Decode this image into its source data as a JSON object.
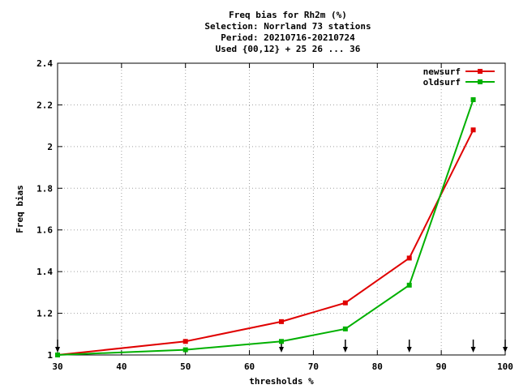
{
  "chart_data": {
    "type": "line",
    "title_lines": [
      "Freq bias  for Rh2m (%)",
      "Selection: Norrland     73 stations",
      "Period: 20210716-20210724",
      "Used {00,12} + 25 26 ... 36"
    ],
    "xlabel": "thresholds %",
    "ylabel": "Freq bias",
    "xlim": [
      30,
      100
    ],
    "ylim": [
      1,
      2.4
    ],
    "xticks": [
      30,
      40,
      50,
      60,
      70,
      80,
      90,
      100
    ],
    "yticks": [
      1,
      1.2,
      1.4,
      1.6,
      1.8,
      2,
      2.2,
      2.4
    ],
    "ytick_labels": [
      "1",
      "1.2",
      "1.4",
      "1.6",
      "1.8",
      "2",
      "2.2",
      "2.4"
    ],
    "grid": true,
    "legend_position": "top-right",
    "markers_at_thresholds": [
      30,
      65,
      75,
      85,
      95,
      100
    ],
    "series": [
      {
        "name": "newsurf",
        "color": "#e00000",
        "x": [
          30,
          50,
          65,
          75,
          85,
          95
        ],
        "y": [
          1.0,
          1.065,
          1.16,
          1.25,
          1.465,
          2.08
        ]
      },
      {
        "name": "oldsurf",
        "color": "#00b000",
        "x": [
          30,
          50,
          65,
          75,
          85,
          95
        ],
        "y": [
          1.0,
          1.025,
          1.065,
          1.125,
          1.335,
          2.225
        ]
      }
    ]
  }
}
